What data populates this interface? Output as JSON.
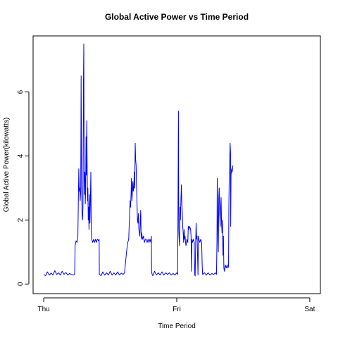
{
  "chart_data": {
    "type": "line",
    "title": "Global Active Power vs Time Period",
    "xlabel": "Time Period",
    "ylabel": "Global Active Power(kilowatts)",
    "x_ticks": [
      {
        "value": 0,
        "label": "Thu"
      },
      {
        "value": 1440,
        "label": "Fri"
      },
      {
        "value": 2880,
        "label": "Sat"
      }
    ],
    "y_ticks": [
      0,
      2,
      4,
      6
    ],
    "xlim": [
      -115,
      2995
    ],
    "ylim": [
      -0.3,
      7.75
    ],
    "x_unit": "minutes since Thu 00:00",
    "series": [
      {
        "name": "Global Active Power",
        "color": "#0000ff",
        "points": [
          [
            0,
            0.3
          ],
          [
            20,
            0.26
          ],
          [
            40,
            0.38
          ],
          [
            60,
            0.28
          ],
          [
            80,
            0.34
          ],
          [
            100,
            0.28
          ],
          [
            120,
            0.42
          ],
          [
            140,
            0.3
          ],
          [
            160,
            0.35
          ],
          [
            180,
            0.28
          ],
          [
            200,
            0.4
          ],
          [
            220,
            0.3
          ],
          [
            240,
            0.36
          ],
          [
            260,
            0.28
          ],
          [
            280,
            0.33
          ],
          [
            300,
            0.3
          ],
          [
            320,
            0.28
          ],
          [
            335,
            0.3
          ],
          [
            340,
            1.2
          ],
          [
            350,
            1.35
          ],
          [
            360,
            1.3
          ],
          [
            370,
            1.5
          ],
          [
            375,
            2.7
          ],
          [
            380,
            3.6
          ],
          [
            385,
            2.9
          ],
          [
            390,
            3.0
          ],
          [
            395,
            2.6
          ],
          [
            400,
            2.9
          ],
          [
            405,
            6.5
          ],
          [
            410,
            3.2
          ],
          [
            415,
            2.2
          ],
          [
            420,
            2.0
          ],
          [
            425,
            2.4
          ],
          [
            430,
            6.3
          ],
          [
            434,
            7.5
          ],
          [
            438,
            3.3
          ],
          [
            442,
            2.8
          ],
          [
            446,
            3.5
          ],
          [
            450,
            2.5
          ],
          [
            454,
            2.9
          ],
          [
            458,
            4.6
          ],
          [
            462,
            3.4
          ],
          [
            466,
            5.1
          ],
          [
            470,
            3.8
          ],
          [
            474,
            2.6
          ],
          [
            478,
            3.0
          ],
          [
            482,
            2.0
          ],
          [
            486,
            2.4
          ],
          [
            490,
            1.7
          ],
          [
            495,
            2.8
          ],
          [
            500,
            1.9
          ],
          [
            505,
            2.6
          ],
          [
            510,
            3.5
          ],
          [
            515,
            1.6
          ],
          [
            520,
            1.4
          ],
          [
            530,
            1.3
          ],
          [
            540,
            1.4
          ],
          [
            550,
            1.3
          ],
          [
            560,
            1.4
          ],
          [
            570,
            1.3
          ],
          [
            580,
            1.4
          ],
          [
            595,
            1.35
          ],
          [
            600,
            1.4
          ],
          [
            602,
            0.3
          ],
          [
            620,
            0.26
          ],
          [
            640,
            0.38
          ],
          [
            660,
            0.28
          ],
          [
            680,
            0.35
          ],
          [
            700,
            0.28
          ],
          [
            720,
            0.4
          ],
          [
            740,
            0.28
          ],
          [
            760,
            0.35
          ],
          [
            780,
            0.28
          ],
          [
            800,
            0.38
          ],
          [
            820,
            0.28
          ],
          [
            840,
            0.34
          ],
          [
            860,
            0.3
          ],
          [
            875,
            0.35
          ],
          [
            880,
            0.5
          ],
          [
            890,
            0.8
          ],
          [
            900,
            1.1
          ],
          [
            910,
            1.3
          ],
          [
            920,
            1.4
          ],
          [
            925,
            1.8
          ],
          [
            930,
            2.2
          ],
          [
            935,
            2.6
          ],
          [
            940,
            2.4
          ],
          [
            945,
            2.8
          ],
          [
            950,
            3.3
          ],
          [
            955,
            2.6
          ],
          [
            960,
            2.9
          ],
          [
            965,
            3.2
          ],
          [
            970,
            2.9
          ],
          [
            975,
            3.0
          ],
          [
            980,
            3.5
          ],
          [
            985,
            3.0
          ],
          [
            990,
            4.4
          ],
          [
            995,
            3.9
          ],
          [
            1000,
            3.7
          ],
          [
            1005,
            3.1
          ],
          [
            1010,
            2.5
          ],
          [
            1015,
            2.0
          ],
          [
            1020,
            1.9
          ],
          [
            1025,
            2.2
          ],
          [
            1030,
            1.7
          ],
          [
            1035,
            1.6
          ],
          [
            1040,
            1.5
          ],
          [
            1050,
            2.3
          ],
          [
            1055,
            1.4
          ],
          [
            1060,
            1.6
          ],
          [
            1065,
            1.5
          ],
          [
            1070,
            1.4
          ],
          [
            1080,
            1.5
          ],
          [
            1090,
            1.3
          ],
          [
            1100,
            1.4
          ],
          [
            1110,
            1.4
          ],
          [
            1120,
            1.3
          ],
          [
            1130,
            1.4
          ],
          [
            1140,
            1.3
          ],
          [
            1150,
            1.4
          ],
          [
            1160,
            1.3
          ],
          [
            1165,
            1.5
          ],
          [
            1168,
            0.35
          ],
          [
            1180,
            0.26
          ],
          [
            1200,
            0.4
          ],
          [
            1220,
            0.28
          ],
          [
            1240,
            0.35
          ],
          [
            1260,
            0.28
          ],
          [
            1280,
            0.38
          ],
          [
            1300,
            0.28
          ],
          [
            1320,
            0.35
          ],
          [
            1340,
            0.3
          ],
          [
            1360,
            0.35
          ],
          [
            1380,
            0.28
          ],
          [
            1400,
            0.33
          ],
          [
            1420,
            0.28
          ],
          [
            1440,
            0.35
          ],
          [
            1450,
            0.3
          ],
          [
            1455,
            3.5
          ],
          [
            1458,
            5.4
          ],
          [
            1462,
            1.7
          ],
          [
            1466,
            1.4
          ],
          [
            1470,
            1.2
          ],
          [
            1475,
            2.4
          ],
          [
            1480,
            2.0
          ],
          [
            1485,
            2.6
          ],
          [
            1490,
            3.1
          ],
          [
            1495,
            2.5
          ],
          [
            1500,
            2.2
          ],
          [
            1505,
            1.8
          ],
          [
            1510,
            1.6
          ],
          [
            1515,
            1.3
          ],
          [
            1520,
            1.7
          ],
          [
            1525,
            1.4
          ],
          [
            1530,
            1.5
          ],
          [
            1535,
            1.3
          ],
          [
            1540,
            1.2
          ],
          [
            1550,
            1.4
          ],
          [
            1560,
            1.3
          ],
          [
            1565,
            1.8
          ],
          [
            1570,
            1.7
          ],
          [
            1580,
            1.8
          ],
          [
            1590,
            1.7
          ],
          [
            1595,
            1.5
          ],
          [
            1600,
            0.4
          ],
          [
            1605,
            1.4
          ],
          [
            1610,
            1.3
          ],
          [
            1620,
            1.4
          ],
          [
            1630,
            1.3
          ],
          [
            1635,
            0.3
          ],
          [
            1640,
            0.25
          ],
          [
            1645,
            1.3
          ],
          [
            1650,
            1.9
          ],
          [
            1655,
            1.4
          ],
          [
            1660,
            1.5
          ],
          [
            1670,
            0.28
          ],
          [
            1675,
            1.5
          ],
          [
            1680,
            1.4
          ],
          [
            1690,
            1.3
          ],
          [
            1700,
            1.4
          ],
          [
            1710,
            1.3
          ],
          [
            1715,
            0.6
          ],
          [
            1720,
            0.3
          ],
          [
            1740,
            0.35
          ],
          [
            1760,
            0.28
          ],
          [
            1780,
            0.35
          ],
          [
            1800,
            0.28
          ],
          [
            1820,
            0.33
          ],
          [
            1840,
            0.3
          ],
          [
            1860,
            0.35
          ],
          [
            1870,
            0.3
          ],
          [
            1875,
            1.3
          ],
          [
            1878,
            3.3
          ],
          [
            1882,
            2.4
          ],
          [
            1886,
            1.4
          ],
          [
            1890,
            1.0
          ],
          [
            1895,
            2.7
          ],
          [
            1900,
            3.0
          ],
          [
            1905,
            2.2
          ],
          [
            1910,
            1.8
          ],
          [
            1915,
            2.4
          ],
          [
            1920,
            2.7
          ],
          [
            1925,
            1.9
          ],
          [
            1930,
            1.6
          ],
          [
            1935,
            2.0
          ],
          [
            1940,
            0.9
          ],
          [
            1945,
            1.5
          ],
          [
            1950,
            0.5
          ],
          [
            1955,
            0.4
          ],
          [
            1965,
            0.6
          ],
          [
            1975,
            0.5
          ],
          [
            1985,
            0.6
          ],
          [
            1995,
            0.5
          ],
          [
            2000,
            0.55
          ],
          [
            2005,
            2.6
          ],
          [
            2010,
            3.6
          ],
          [
            2015,
            4.0
          ],
          [
            2018,
            4.4
          ],
          [
            2022,
            4.1
          ],
          [
            2024,
            1.8
          ],
          [
            2028,
            3.4
          ],
          [
            2034,
            3.6
          ],
          [
            2040,
            3.5
          ],
          [
            2048,
            3.7
          ]
        ]
      }
    ]
  }
}
